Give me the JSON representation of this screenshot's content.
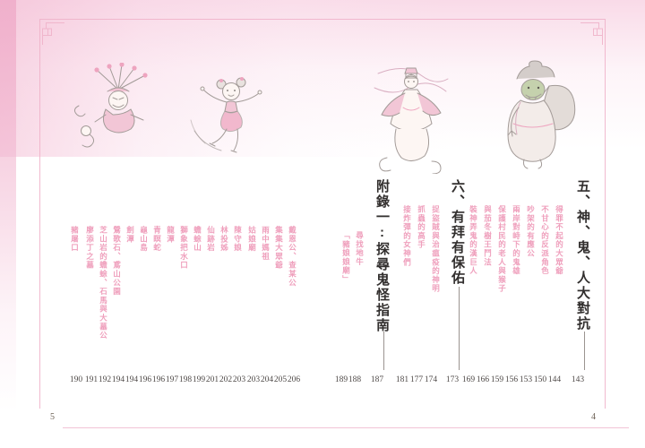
{
  "page": {
    "left_folio": "5",
    "right_folio": "4"
  },
  "toc": {
    "sections": [
      {
        "title": "五、神、鬼、人大對抗",
        "page": "143",
        "entries": [
          {
            "label": "得罪不起的大眾爺",
            "page": "144"
          },
          {
            "label": "不甘心的反派角色",
            "page": "150"
          },
          {
            "label": "吵架的有應公",
            "page": "153"
          },
          {
            "label": "兩岸對峙下的鬼雄",
            "page": "156"
          },
          {
            "label": "保護村民的老人與猴子",
            "page": "159"
          },
          {
            "label": "與茄冬樹王鬥法",
            "page": "166"
          },
          {
            "label": "裝神弄鬼的漢巨人",
            "page": "169"
          }
        ]
      },
      {
        "title": "六、有拜有保佑",
        "page": "173",
        "entries": [
          {
            "label": "捉盜賊與治瘟疫的神明",
            "page": "174"
          },
          {
            "label": "抓蟲的高手",
            "page": "177"
          },
          {
            "label": "接炸彈的女神們",
            "page": "181"
          }
        ]
      },
      {
        "title": "附錄一:探尋鬼怪指南",
        "page": "187",
        "entries": [
          {
            "label": "尋找地牛",
            "page": "188"
          },
          {
            "label": "「豬娘娘廟」",
            "page": "189"
          }
        ]
      }
    ],
    "left_page_entries": [
      {
        "label": "豬屠口",
        "page": "190"
      },
      {
        "label": "廖添丁之墓",
        "page": "191"
      },
      {
        "label": "芝山岩的蟾蜍、石馬與大墓公",
        "page": "192"
      },
      {
        "label": "鶯歌石、鳶山公園",
        "page": "194"
      },
      {
        "label": "劍潭",
        "page": "194"
      },
      {
        "label": "龜山島",
        "page": "196"
      },
      {
        "label": "青瞑蛇",
        "page": "196"
      },
      {
        "label": "龍潭",
        "page": "197"
      },
      {
        "label": "獅象把水口",
        "page": "198"
      },
      {
        "label": "蟾蜍山",
        "page": "199"
      },
      {
        "label": "仙跡岩",
        "page": "201"
      },
      {
        "label": "林投姊",
        "page": "202"
      },
      {
        "label": "陳守娘",
        "page": "203"
      },
      {
        "label": "姑娘廟",
        "page": "203"
      },
      {
        "label": "雨中媽祖",
        "page": "204"
      },
      {
        "label": "集集大眾爺",
        "page": "205"
      },
      {
        "label": "戴恩公、查某公",
        "page": "206"
      }
    ]
  },
  "illustrations": [
    {
      "name": "demon-with-blade-headdress"
    },
    {
      "name": "leaping-girl"
    },
    {
      "name": "goddess-with-ribbons"
    },
    {
      "name": "green-giant-with-sack"
    }
  ],
  "colors": {
    "entry_pink": "#ef9fbc",
    "heading_ink": "#322f2e",
    "frame_pink": "#f0b3ca",
    "page_number_grey": "#4f4a48",
    "folio_brown": "#6e6256",
    "bottom_rule_pink": "#f2c3d6"
  }
}
